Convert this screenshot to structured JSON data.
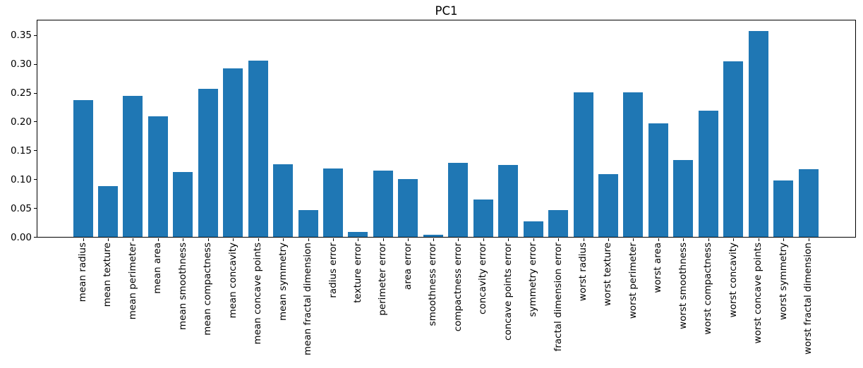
{
  "chart_data": {
    "type": "bar",
    "title": "PC1",
    "xlabel": "",
    "ylabel": "",
    "grid": false,
    "legend_position": "none",
    "bar_color": "#1f77b4",
    "axis_color": "#000000",
    "x_tick_rotation": 90,
    "ylim": [
      0,
      0.378
    ],
    "ytick_labels": [
      "0.00",
      "0.05",
      "0.10",
      "0.15",
      "0.20",
      "0.25",
      "0.30",
      "0.35"
    ],
    "categories": [
      "mean radius",
      "mean texture",
      "mean perimeter",
      "mean area",
      "mean smoothness",
      "mean compactness",
      "mean concavity",
      "mean concave points",
      "mean symmetry",
      "mean fractal dimension",
      "radius error",
      "texture error",
      "perimeter error",
      "area error",
      "smoothness error",
      "compactness error",
      "concavity error",
      "concave points error",
      "symmetry error",
      "fractal dimension error",
      "worst radius",
      "worst texture",
      "worst perimeter",
      "worst area",
      "worst smoothness",
      "worst compactness",
      "worst concavity",
      "worst concave points",
      "worst symmetry",
      "worst fractal dimension"
    ],
    "values": [
      0.237,
      0.088,
      0.245,
      0.209,
      0.112,
      0.257,
      0.292,
      0.306,
      0.126,
      0.046,
      0.119,
      0.008,
      0.115,
      0.1,
      0.004,
      0.128,
      0.065,
      0.125,
      0.027,
      0.046,
      0.25,
      0.109,
      0.251,
      0.197,
      0.133,
      0.219,
      0.305,
      0.357,
      0.098,
      0.117
    ]
  }
}
